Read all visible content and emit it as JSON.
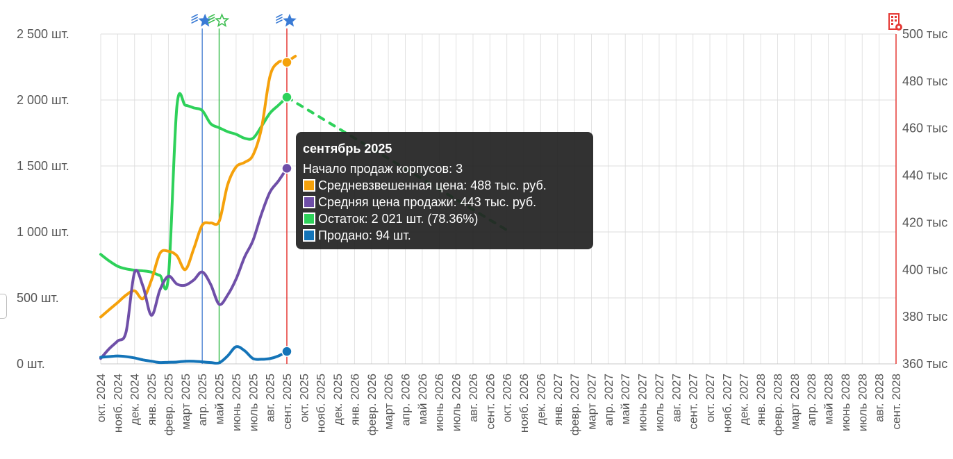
{
  "chart_data": {
    "type": "line",
    "x_categories": [
      "окт. 2024",
      "нояб. 2024",
      "дек. 2024",
      "янв. 2025",
      "февр. 2025",
      "март 2025",
      "апр. 2025",
      "май 2025",
      "июнь 2025",
      "июль 2025",
      "авг. 2025",
      "сент. 2025",
      "окт. 2025",
      "нояб. 2025",
      "дек. 2025",
      "янв. 2026",
      "февр. 2026",
      "март 2026",
      "апр. 2026",
      "май 2026",
      "июнь 2026",
      "июль 2026",
      "авг. 2026",
      "сент. 2026",
      "окт. 2026",
      "нояб. 2026",
      "дек. 2026",
      "янв. 2027",
      "февр. 2027",
      "март 2027",
      "апр. 2027",
      "май 2027",
      "июнь 2027",
      "июль 2027",
      "авг. 2027",
      "сент. 2027",
      "окт. 2027",
      "нояб. 2027",
      "дек. 2027",
      "янв. 2028",
      "февр. 2028",
      "март 2028",
      "апр. 2028",
      "май 2028",
      "июнь 2028",
      "июль 2028",
      "авг. 2028",
      "сент. 2028"
    ],
    "y_left": {
      "ticks": [
        "0 шт.",
        "500 шт.",
        "1 000 шт.",
        "1 500 шт.",
        "2 000 шт.",
        "2 500 шт."
      ],
      "range": [
        0,
        2500
      ]
    },
    "y_right": {
      "ticks": [
        "360 тыс",
        "380 тыс",
        "400 тыс",
        "420 тыс",
        "440 тыс",
        "460 тыс",
        "480 тыс",
        "500 тыс"
      ],
      "range": [
        360,
        500
      ]
    },
    "grid": true,
    "series": [
      {
        "key": "weighted",
        "axis": "right",
        "color": "#f5a10b",
        "x": [
          0,
          0.5,
          1,
          1.5,
          2,
          2.5,
          3,
          3.5,
          4,
          4.5,
          5,
          5.5,
          6,
          6.5,
          7,
          7.5,
          8,
          8.5,
          9,
          9.5,
          10,
          10.5,
          11,
          11.5
        ],
        "values": [
          379.9,
          383.0,
          386.0,
          389.2,
          391.0,
          387.7,
          395.6,
          406.9,
          407.8,
          405.9,
          400.0,
          408.9,
          418.9,
          419.8,
          420.5,
          436.0,
          443.6,
          445.5,
          448.6,
          460.0,
          482.0,
          488.0,
          488.4,
          490.6
        ]
      },
      {
        "key": "avg_sale",
        "axis": "right",
        "color": "#6f4fa8",
        "x": [
          0,
          0.5,
          1,
          1.5,
          2,
          2.5,
          3,
          3.5,
          4,
          4.5,
          5,
          5.5,
          6,
          6.5,
          7,
          7.5,
          8,
          8.5,
          9,
          9.5,
          10,
          10.5,
          11
        ],
        "values": [
          362.3,
          366.4,
          369.7,
          373.6,
          398.8,
          392.9,
          380.6,
          391.4,
          397.2,
          393.9,
          393.4,
          395.6,
          399.0,
          393.7,
          385.3,
          389.2,
          396.0,
          405.3,
          412.4,
          423.6,
          432.9,
          437.6,
          443.0
        ]
      },
      {
        "key": "stock",
        "axis": "left",
        "color": "#2ed15a",
        "x": [
          0,
          0.5,
          1,
          1.5,
          2,
          2.5,
          3,
          3.5,
          4,
          4.5,
          5,
          5.5,
          6,
          6.5,
          7,
          7.5,
          8,
          8.5,
          9,
          9.5,
          10,
          10.5,
          11
        ],
        "values": [
          830,
          780,
          740,
          720,
          710,
          705,
          695,
          670,
          660,
          1950,
          1960,
          1940,
          1920,
          1820,
          1790,
          1760,
          1740,
          1710,
          1710,
          1800,
          1900,
          1960,
          2021
        ]
      },
      {
        "key": "stock_forecast",
        "axis": "left",
        "color": "#2ed15a",
        "dashed": true,
        "x": [
          11,
          12,
          13,
          14,
          15,
          16,
          17,
          18,
          19,
          20,
          21,
          22,
          23,
          24
        ],
        "values": [
          2021,
          1944,
          1866,
          1789,
          1711,
          1634,
          1556,
          1479,
          1401,
          1324,
          1246,
          1169,
          1091,
          1014
        ]
      },
      {
        "key": "sold",
        "axis": "left",
        "color": "#1474b8",
        "x": [
          0,
          0.5,
          1,
          1.5,
          2,
          2.5,
          3,
          3.5,
          4,
          4.5,
          5,
          5.5,
          6,
          6.5,
          7,
          7.5,
          8,
          8.5,
          9,
          9.5,
          10,
          10.5,
          11
        ],
        "values": [
          50,
          55,
          60,
          55,
          45,
          30,
          20,
          10,
          12,
          14,
          20,
          20,
          15,
          10,
          8,
          60,
          130,
          100,
          40,
          35,
          40,
          60,
          94
        ]
      }
    ],
    "markers": [
      {
        "x": 11,
        "series": "weighted",
        "value": 488
      },
      {
        "x": 11,
        "series": "avg_sale",
        "value": 443
      },
      {
        "x": 11,
        "series": "stock",
        "value": 2021
      },
      {
        "x": 11,
        "series": "sold",
        "value": 94
      }
    ],
    "vertical_lines": [
      {
        "x": 6,
        "color": "#5b8ed8"
      },
      {
        "x": 7,
        "color": "#3fbf52"
      },
      {
        "x": 11,
        "color": "#e53935"
      }
    ],
    "event_icons": [
      {
        "x": 6,
        "name": "star-launch-icon",
        "color": "#3a7bd5"
      },
      {
        "x": 7,
        "name": "star-outline-launch-icon",
        "color": "#3fbf52"
      },
      {
        "x": 11,
        "name": "star-launch-icon",
        "color": "#3a7bd5"
      }
    ],
    "right_axis_color": "#e53935"
  },
  "tooltip": {
    "title": "сентябрь 2025",
    "line1": "Начало продаж корпусов: 3",
    "rows": [
      {
        "text": "Средневзвешенная цена: 488 тыс. руб.",
        "color": "#f5a10b"
      },
      {
        "text": "Средняя цена продажи: 443 тыс. руб.",
        "color": "#6f4fa8"
      },
      {
        "text": "Остаток: 2 021 шт. (78.36%)",
        "color": "#2ed15a"
      },
      {
        "text": "Продано: 94 шт.",
        "color": "#1474b8"
      }
    ]
  },
  "icons": {
    "top_right": "building-settings-icon"
  }
}
